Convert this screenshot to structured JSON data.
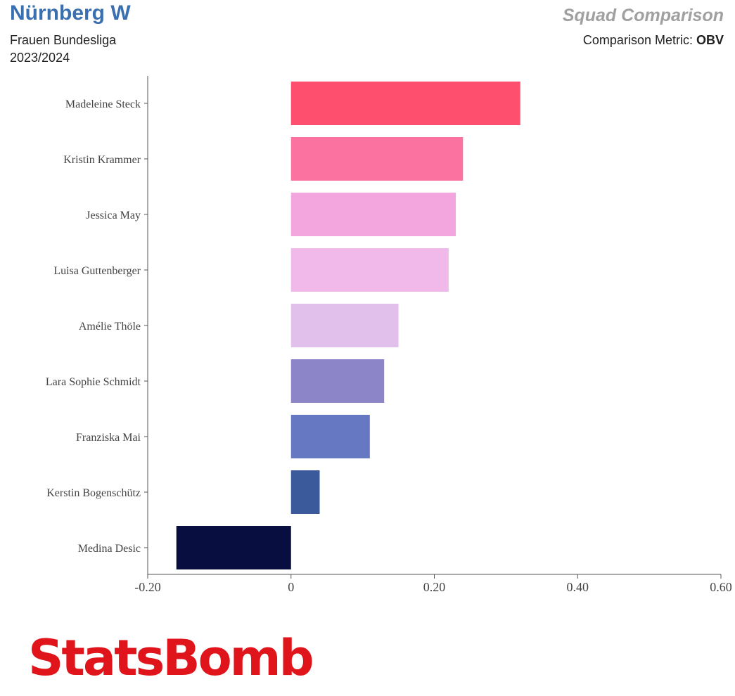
{
  "header": {
    "team": "Nürnberg W",
    "competition": "Frauen Bundesliga",
    "season": "2023/2024",
    "report_title": "Squad Comparison",
    "metric_label": "Comparison Metric:",
    "metric_value": "OBV"
  },
  "logo": {
    "text": "StatsBomb"
  },
  "colors": {
    "brand": "#e0151c",
    "team_title": "#3a6fb0"
  },
  "chart_data": {
    "type": "bar",
    "orientation": "horizontal",
    "categories": [
      "Madeleine Steck",
      "Kristin Krammer",
      "Jessica May",
      "Luisa Guttenberger",
      "Amélie Thöle",
      "Lara Sophie Schmidt",
      "Franziska Mai",
      "Kerstin Bogenschütz",
      "Medina Desic"
    ],
    "values": [
      0.32,
      0.24,
      0.23,
      0.22,
      0.15,
      0.13,
      0.11,
      0.04,
      -0.16
    ],
    "colors": [
      "#ff4f6e",
      "#fb72a0",
      "#f2a6dd",
      "#f0b9e9",
      "#e2c0ec",
      "#8c86c8",
      "#6678c1",
      "#3a5a9c",
      "#080e3f"
    ],
    "xlim": [
      -0.2,
      0.6
    ],
    "xticks": [
      -0.2,
      0,
      0.2,
      0.4,
      0.6
    ],
    "xtick_labels": [
      "-0.20",
      "0",
      "0.20",
      "0.40",
      "0.60"
    ],
    "grid": false
  }
}
